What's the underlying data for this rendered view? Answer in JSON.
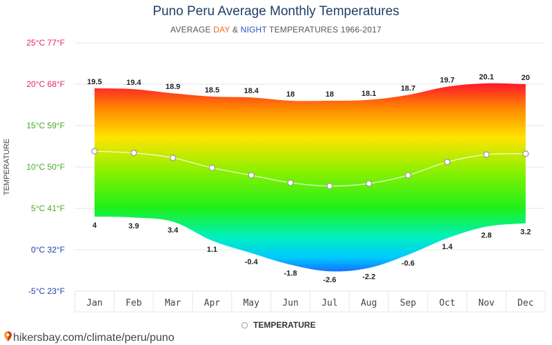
{
  "header": {
    "title": "Puno Peru Average Monthly Temperatures",
    "subtitle_pre": "AVERAGE ",
    "subtitle_day": "DAY",
    "subtitle_amp": " & ",
    "subtitle_night": "NIGHT",
    "subtitle_post": " TEMPERATURES 1966-2017"
  },
  "legend": {
    "label": "TEMPERATURE"
  },
  "footer": {
    "url": "hikersbay.com/climate/peru/puno"
  },
  "colors": {
    "day": "#ef6b1a",
    "night": "#2257b5",
    "grid": "#e6e6e6",
    "line": "#ffffff"
  },
  "chart_data": {
    "type": "area",
    "categories": [
      "Jan",
      "Feb",
      "Mar",
      "Apr",
      "May",
      "Jun",
      "Jul",
      "Aug",
      "Sep",
      "Oct",
      "Nov",
      "Dec"
    ],
    "series": [
      {
        "values": [
          19.5,
          19.4,
          18.9,
          18.5,
          18.4,
          18,
          18,
          18.1,
          18.7,
          19.7,
          20.1,
          20
        ]
      },
      {
        "values": [
          4,
          3.9,
          3.4,
          1.1,
          -0.4,
          -1.8,
          -2.6,
          -2.2,
          -0.6,
          1.4,
          2.8,
          3.2
        ]
      },
      {
        "name": "TEMPERATURE",
        "values": [
          11.9,
          11.7,
          11.1,
          9.9,
          9.0,
          8.1,
          7.7,
          8.0,
          9.0,
          10.6,
          11.5,
          11.6
        ]
      }
    ],
    "ylabel": "TEMPERATURE",
    "ylim": [
      -5,
      25
    ],
    "yticks": [
      {
        "value": 25,
        "label": "25°C 77°F",
        "color": "#e2246a"
      },
      {
        "value": 20,
        "label": "20°C 68°F",
        "color": "#e2246a"
      },
      {
        "value": 15,
        "label": "15°C 59°F",
        "color": "#49a821"
      },
      {
        "value": 10,
        "label": "10°C 50°F",
        "color": "#49a821"
      },
      {
        "value": 5,
        "label": "5°C 41°F",
        "color": "#49a821"
      },
      {
        "value": 0,
        "label": "0°C 32°F",
        "color": "#1f3fa8"
      },
      {
        "value": -5,
        "label": "-5°C 23°F",
        "color": "#1f3fa8"
      }
    ],
    "grid": true,
    "legend_position": "bottom"
  }
}
